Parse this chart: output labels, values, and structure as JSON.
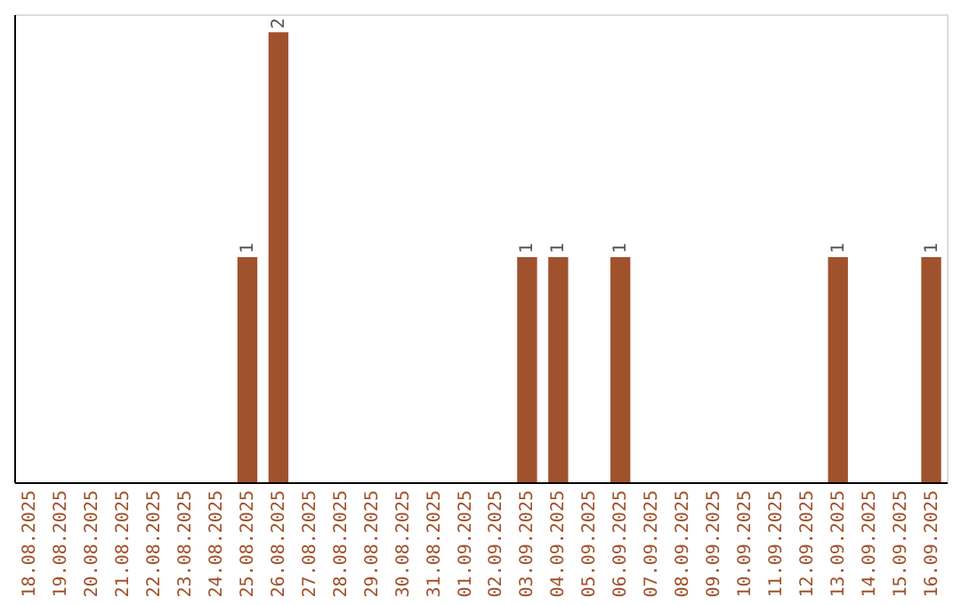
{
  "chart_data": {
    "type": "bar",
    "categories": [
      "18.08.2025",
      "19.08.2025",
      "20.08.2025",
      "21.08.2025",
      "22.08.2025",
      "23.08.2025",
      "24.08.2025",
      "25.08.2025",
      "26.08.2025",
      "27.08.2025",
      "28.08.2025",
      "29.08.2025",
      "30.08.2025",
      "31.08.2025",
      "01.09.2025",
      "02.09.2025",
      "03.09.2025",
      "04.09.2025",
      "05.09.2025",
      "06.09.2025",
      "07.09.2025",
      "08.09.2025",
      "09.09.2025",
      "10.09.2025",
      "11.09.2025",
      "12.09.2025",
      "13.09.2025",
      "14.09.2025",
      "15.09.2025",
      "16.09.2025"
    ],
    "values": [
      0,
      0,
      0,
      0,
      0,
      0,
      0,
      1,
      2,
      0,
      0,
      0,
      0,
      0,
      0,
      0,
      1,
      1,
      0,
      1,
      0,
      0,
      0,
      0,
      0,
      0,
      1,
      0,
      0,
      1
    ],
    "value_labels": [
      null,
      null,
      null,
      null,
      null,
      null,
      null,
      "1",
      "2",
      null,
      null,
      null,
      null,
      null,
      null,
      null,
      "1",
      "1",
      null,
      "1",
      null,
      null,
      null,
      null,
      null,
      null,
      "1",
      null,
      null,
      "1"
    ],
    "color": "#a0522d",
    "ylim": [
      0,
      2.08
    ],
    "tick_labels": "x",
    "grid": false
  }
}
